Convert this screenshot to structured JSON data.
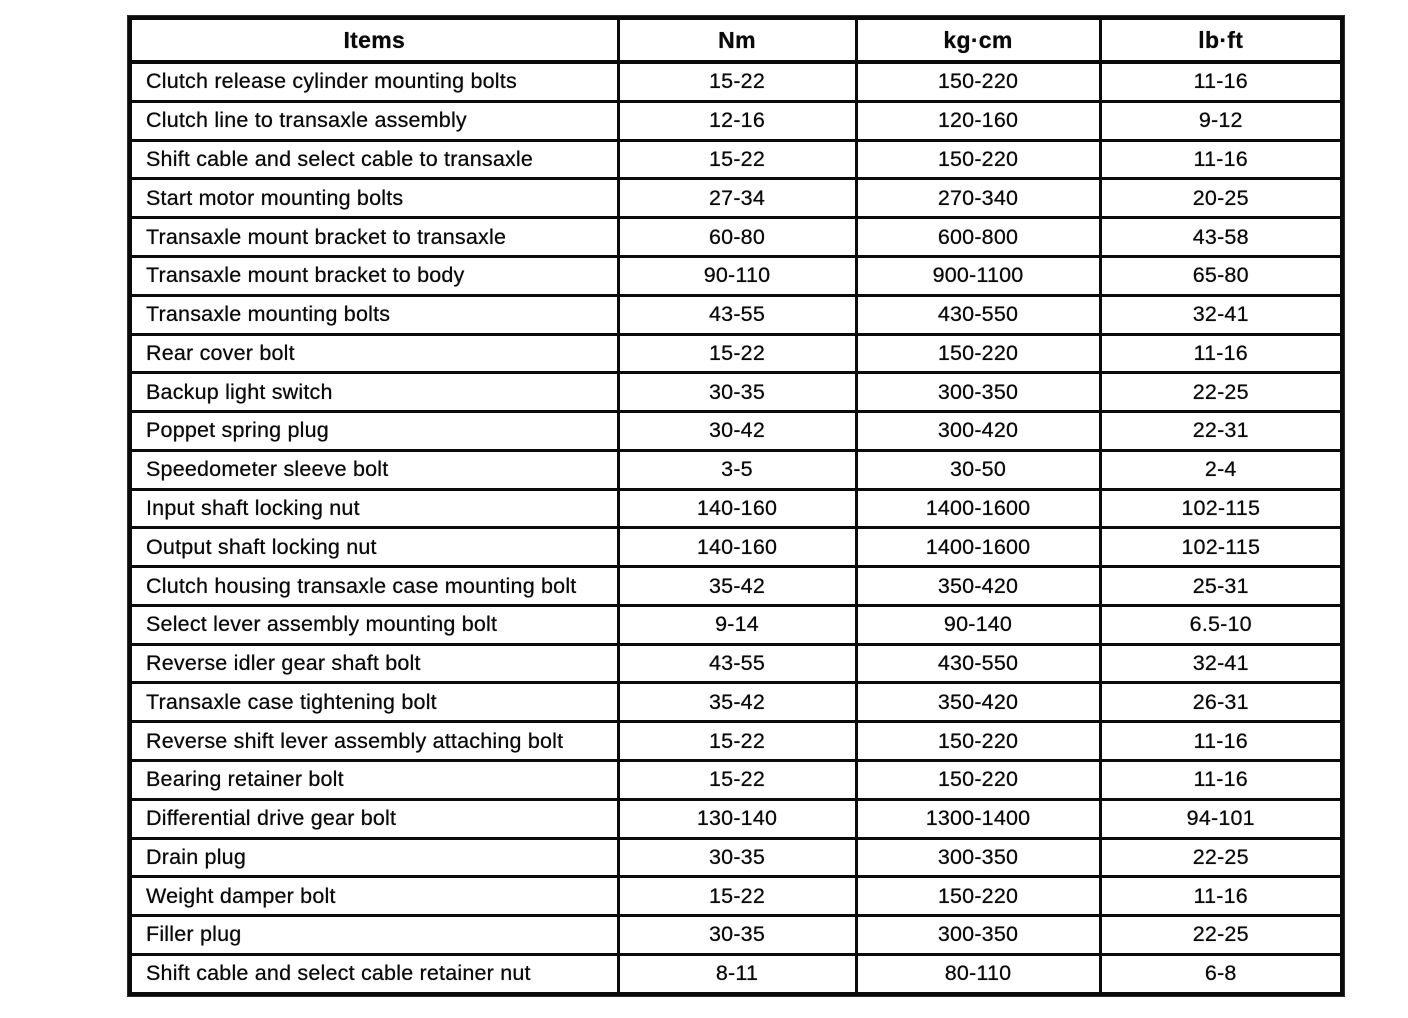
{
  "table": {
    "columns": [
      "Items",
      "Nm",
      "kg·cm",
      "lb·ft"
    ],
    "rows": [
      [
        "Clutch release cylinder mounting bolts",
        "15-22",
        "150-220",
        "11-16"
      ],
      [
        "Clutch line to transaxle assembly",
        "12-16",
        "120-160",
        "9-12"
      ],
      [
        "Shift cable and select cable to transaxle",
        "15-22",
        "150-220",
        "11-16"
      ],
      [
        "Start motor mounting bolts",
        "27-34",
        "270-340",
        "20-25"
      ],
      [
        "Transaxle mount bracket to transaxle",
        "60-80",
        "600-800",
        "43-58"
      ],
      [
        "Transaxle mount bracket to body",
        "90-110",
        "900-1100",
        "65-80"
      ],
      [
        "Transaxle mounting bolts",
        "43-55",
        "430-550",
        "32-41"
      ],
      [
        "Rear cover bolt",
        "15-22",
        "150-220",
        "11-16"
      ],
      [
        "Backup light switch",
        "30-35",
        "300-350",
        "22-25"
      ],
      [
        "Poppet spring plug",
        "30-42",
        "300-420",
        "22-31"
      ],
      [
        "Speedometer sleeve bolt",
        "3-5",
        "30-50",
        "2-4"
      ],
      [
        "Input shaft locking nut",
        "140-160",
        "1400-1600",
        "102-115"
      ],
      [
        "Output shaft locking nut",
        "140-160",
        "1400-1600",
        "102-115"
      ],
      [
        "Clutch housing transaxle case mounting bolt",
        "35-42",
        "350-420",
        "25-31"
      ],
      [
        "Select lever assembly mounting bolt",
        "9-14",
        "90-140",
        "6.5-10"
      ],
      [
        "Reverse idler gear shaft bolt",
        "43-55",
        "430-550",
        "32-41"
      ],
      [
        "Transaxle case tightening bolt",
        "35-42",
        "350-420",
        "26-31"
      ],
      [
        "Reverse shift lever assembly attaching bolt",
        "15-22",
        "150-220",
        "11-16"
      ],
      [
        "Bearing retainer bolt",
        "15-22",
        "150-220",
        "11-16"
      ],
      [
        "Differential drive gear bolt",
        "130-140",
        "1300-1400",
        "94-101"
      ],
      [
        "Drain plug",
        "30-35",
        "300-350",
        "22-25"
      ],
      [
        "Weight damper bolt",
        "15-22",
        "150-220",
        "11-16"
      ],
      [
        "Filler plug",
        "30-35",
        "300-350",
        "22-25"
      ],
      [
        "Shift cable and select cable retainer nut",
        "8-11",
        "80-110",
        "6-8"
      ]
    ]
  }
}
